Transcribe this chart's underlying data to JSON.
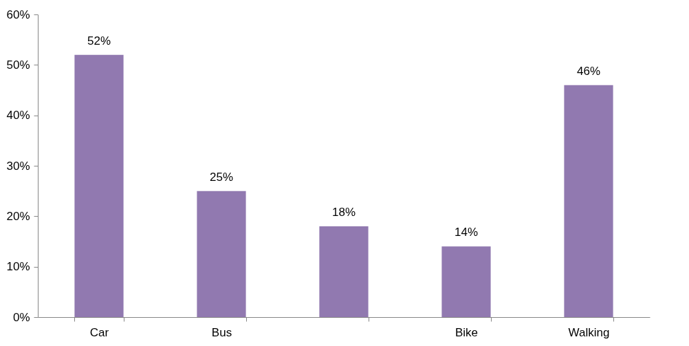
{
  "chart_data": {
    "type": "bar",
    "categories": [
      "Car",
      "Bus",
      null,
      "Bike",
      "Walking"
    ],
    "values": [
      52,
      25,
      18,
      14,
      46
    ],
    "value_labels": [
      "52%",
      "25%",
      "18%",
      "14%",
      "46%"
    ],
    "color": "#9179b0",
    "ylim": [
      0,
      60
    ],
    "yticks": [
      {
        "value": 0,
        "label": "0%"
      },
      {
        "value": 10,
        "label": "10%"
      },
      {
        "value": 20,
        "label": "20%"
      },
      {
        "value": 30,
        "label": "30%"
      },
      {
        "value": 40,
        "label": "40%"
      },
      {
        "value": 50,
        "label": "50%"
      },
      {
        "value": 60,
        "label": "60%"
      }
    ],
    "grid": false
  }
}
